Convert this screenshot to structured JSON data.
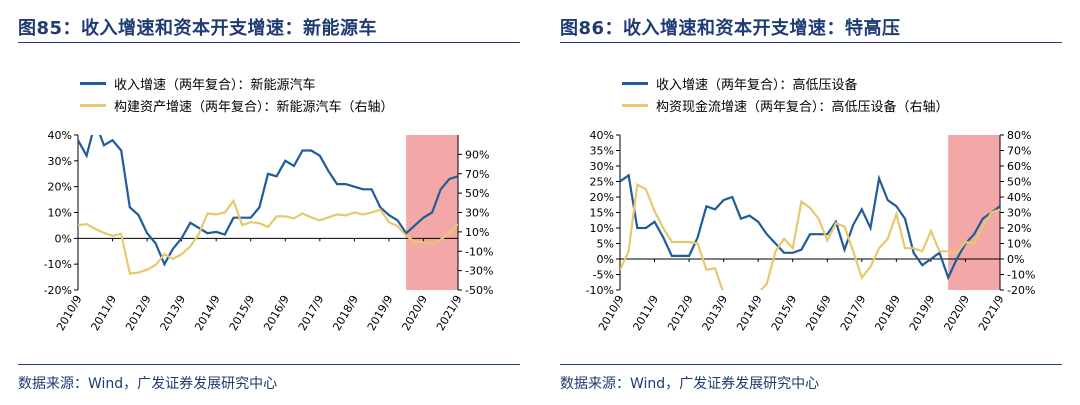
{
  "left": {
    "title": "图85：收入增速和资本开支增速：新能源车",
    "source": "数据来源：Wind，广发证券发展研究中心",
    "chart_data": {
      "type": "line",
      "x": [
        "2010/9",
        "2010/12",
        "2011/3",
        "2011/6",
        "2011/9",
        "2011/12",
        "2012/3",
        "2012/6",
        "2012/9",
        "2012/12",
        "2013/3",
        "2013/6",
        "2013/9",
        "2013/12",
        "2014/3",
        "2014/6",
        "2014/9",
        "2014/12",
        "2015/3",
        "2015/6",
        "2015/9",
        "2015/12",
        "2016/3",
        "2016/6",
        "2016/9",
        "2016/12",
        "2017/3",
        "2017/6",
        "2017/9",
        "2017/12",
        "2018/3",
        "2018/6",
        "2018/9",
        "2018/12",
        "2019/3",
        "2019/6",
        "2019/9",
        "2019/12",
        "2020/3",
        "2020/6",
        "2020/9",
        "2020/12",
        "2021/3",
        "2021/6",
        "2021/9"
      ],
      "x_tick_labels": [
        "2010/9",
        "2011/9",
        "2012/9",
        "2013/9",
        "2014/9",
        "2015/9",
        "2016/9",
        "2017/9",
        "2018/9",
        "2019/9",
        "2020/9",
        "2021/9"
      ],
      "series": [
        {
          "name": "收入增速（两年复合）：新能源汽车",
          "axis": "left",
          "color": "#1f5c99",
          "values": [
            38,
            32,
            45,
            36,
            38,
            34,
            12,
            9,
            2,
            -2,
            -10,
            -4,
            0,
            6,
            4,
            2,
            2.5,
            1.5,
            8,
            8,
            8,
            12,
            25,
            24,
            30,
            28,
            34,
            34,
            32,
            26,
            21,
            21,
            20,
            19,
            19,
            12,
            9,
            7,
            2,
            5,
            8,
            10,
            19,
            23,
            24
          ]
        },
        {
          "name": "构建资产增速（两年复合）：新能源汽车（右轴）",
          "axis": "right",
          "color": "#e6c86e",
          "values": [
            17,
            18,
            13,
            9,
            6,
            8,
            -33,
            -32,
            -29,
            -24,
            -13,
            -18,
            -13,
            -5,
            8,
            29,
            28,
            30,
            42,
            17,
            20,
            19,
            15,
            26,
            26,
            24,
            29,
            25,
            22,
            25,
            28,
            27,
            30,
            28,
            30,
            33,
            20,
            16,
            6,
            0,
            -1,
            -3,
            2,
            9,
            18
          ]
        }
      ],
      "y_left": {
        "min": -20,
        "max": 40,
        "ticks": [
          -20,
          -10,
          0,
          10,
          20,
          30,
          40
        ],
        "format": "%"
      },
      "y_right": {
        "min": -50,
        "max": 110,
        "ticks": [
          -50,
          -30,
          -10,
          10,
          30,
          50,
          70,
          90
        ],
        "format": "%"
      },
      "highlight": {
        "from": "2020/3",
        "to": "2021/9",
        "color": "#f4a7a7"
      },
      "legend_position": "top-left"
    }
  },
  "right": {
    "title": "图86：收入增速和资本开支增速：特高压",
    "source": "数据来源：Wind，广发证券发展研究中心",
    "chart_data": {
      "type": "line",
      "x": [
        "2010/9",
        "2010/12",
        "2011/3",
        "2011/6",
        "2011/9",
        "2011/12",
        "2012/3",
        "2012/6",
        "2012/9",
        "2012/12",
        "2013/3",
        "2013/6",
        "2013/9",
        "2013/12",
        "2014/3",
        "2014/6",
        "2014/9",
        "2014/12",
        "2015/3",
        "2015/6",
        "2015/9",
        "2015/12",
        "2016/3",
        "2016/6",
        "2016/9",
        "2016/12",
        "2017/3",
        "2017/6",
        "2017/9",
        "2017/12",
        "2018/3",
        "2018/6",
        "2018/9",
        "2018/12",
        "2019/3",
        "2019/6",
        "2019/9",
        "2019/12",
        "2020/3",
        "2020/6",
        "2020/9",
        "2020/12",
        "2021/3",
        "2021/6",
        "2021/9"
      ],
      "x_tick_labels": [
        "2010/9",
        "2011/9",
        "2012/9",
        "2013/9",
        "2014/9",
        "2015/9",
        "2016/9",
        "2017/9",
        "2018/9",
        "2019/9",
        "2020/9",
        "2021/9"
      ],
      "series": [
        {
          "name": "收入增速（两年复合）：高低压设备",
          "axis": "left",
          "color": "#1f5c99",
          "values": [
            25,
            27,
            10,
            10,
            12,
            7,
            1,
            1,
            1,
            7,
            17,
            16,
            19,
            20,
            13,
            14,
            12,
            8,
            5,
            2,
            2,
            3,
            8,
            8,
            8,
            12,
            3,
            11,
            16,
            10,
            26,
            19,
            17,
            13,
            2,
            -2,
            0,
            2,
            -6,
            0,
            5,
            8,
            13,
            15,
            17
          ]
        },
        {
          "name": "构资现金流增速（两年复合）：高低压设备（右轴）",
          "axis": "right",
          "color": "#e6c86e",
          "values": [
            -7,
            5,
            48,
            45,
            31,
            20,
            11,
            11,
            11,
            10,
            -7,
            -6,
            -22,
            -23,
            null,
            null,
            -22,
            -16,
            5,
            13,
            7,
            37,
            33,
            26,
            12,
            23,
            21,
            5,
            -12,
            -5,
            7,
            13,
            29,
            7,
            7,
            5,
            18,
            5,
            5,
            4,
            11,
            10,
            21,
            30,
            32
          ]
        }
      ],
      "y_left": {
        "min": -10,
        "max": 40,
        "ticks": [
          -10,
          -5,
          0,
          5,
          10,
          15,
          20,
          25,
          30,
          35,
          40
        ],
        "format": "%"
      },
      "y_right": {
        "min": -20,
        "max": 80,
        "ticks": [
          -20,
          -10,
          0,
          10,
          20,
          30,
          40,
          50,
          60,
          70,
          80
        ],
        "format": "%"
      },
      "highlight": {
        "from": "2020/3",
        "to": "2021/9",
        "color": "#f4a7a7"
      },
      "legend_position": "top-left"
    }
  }
}
